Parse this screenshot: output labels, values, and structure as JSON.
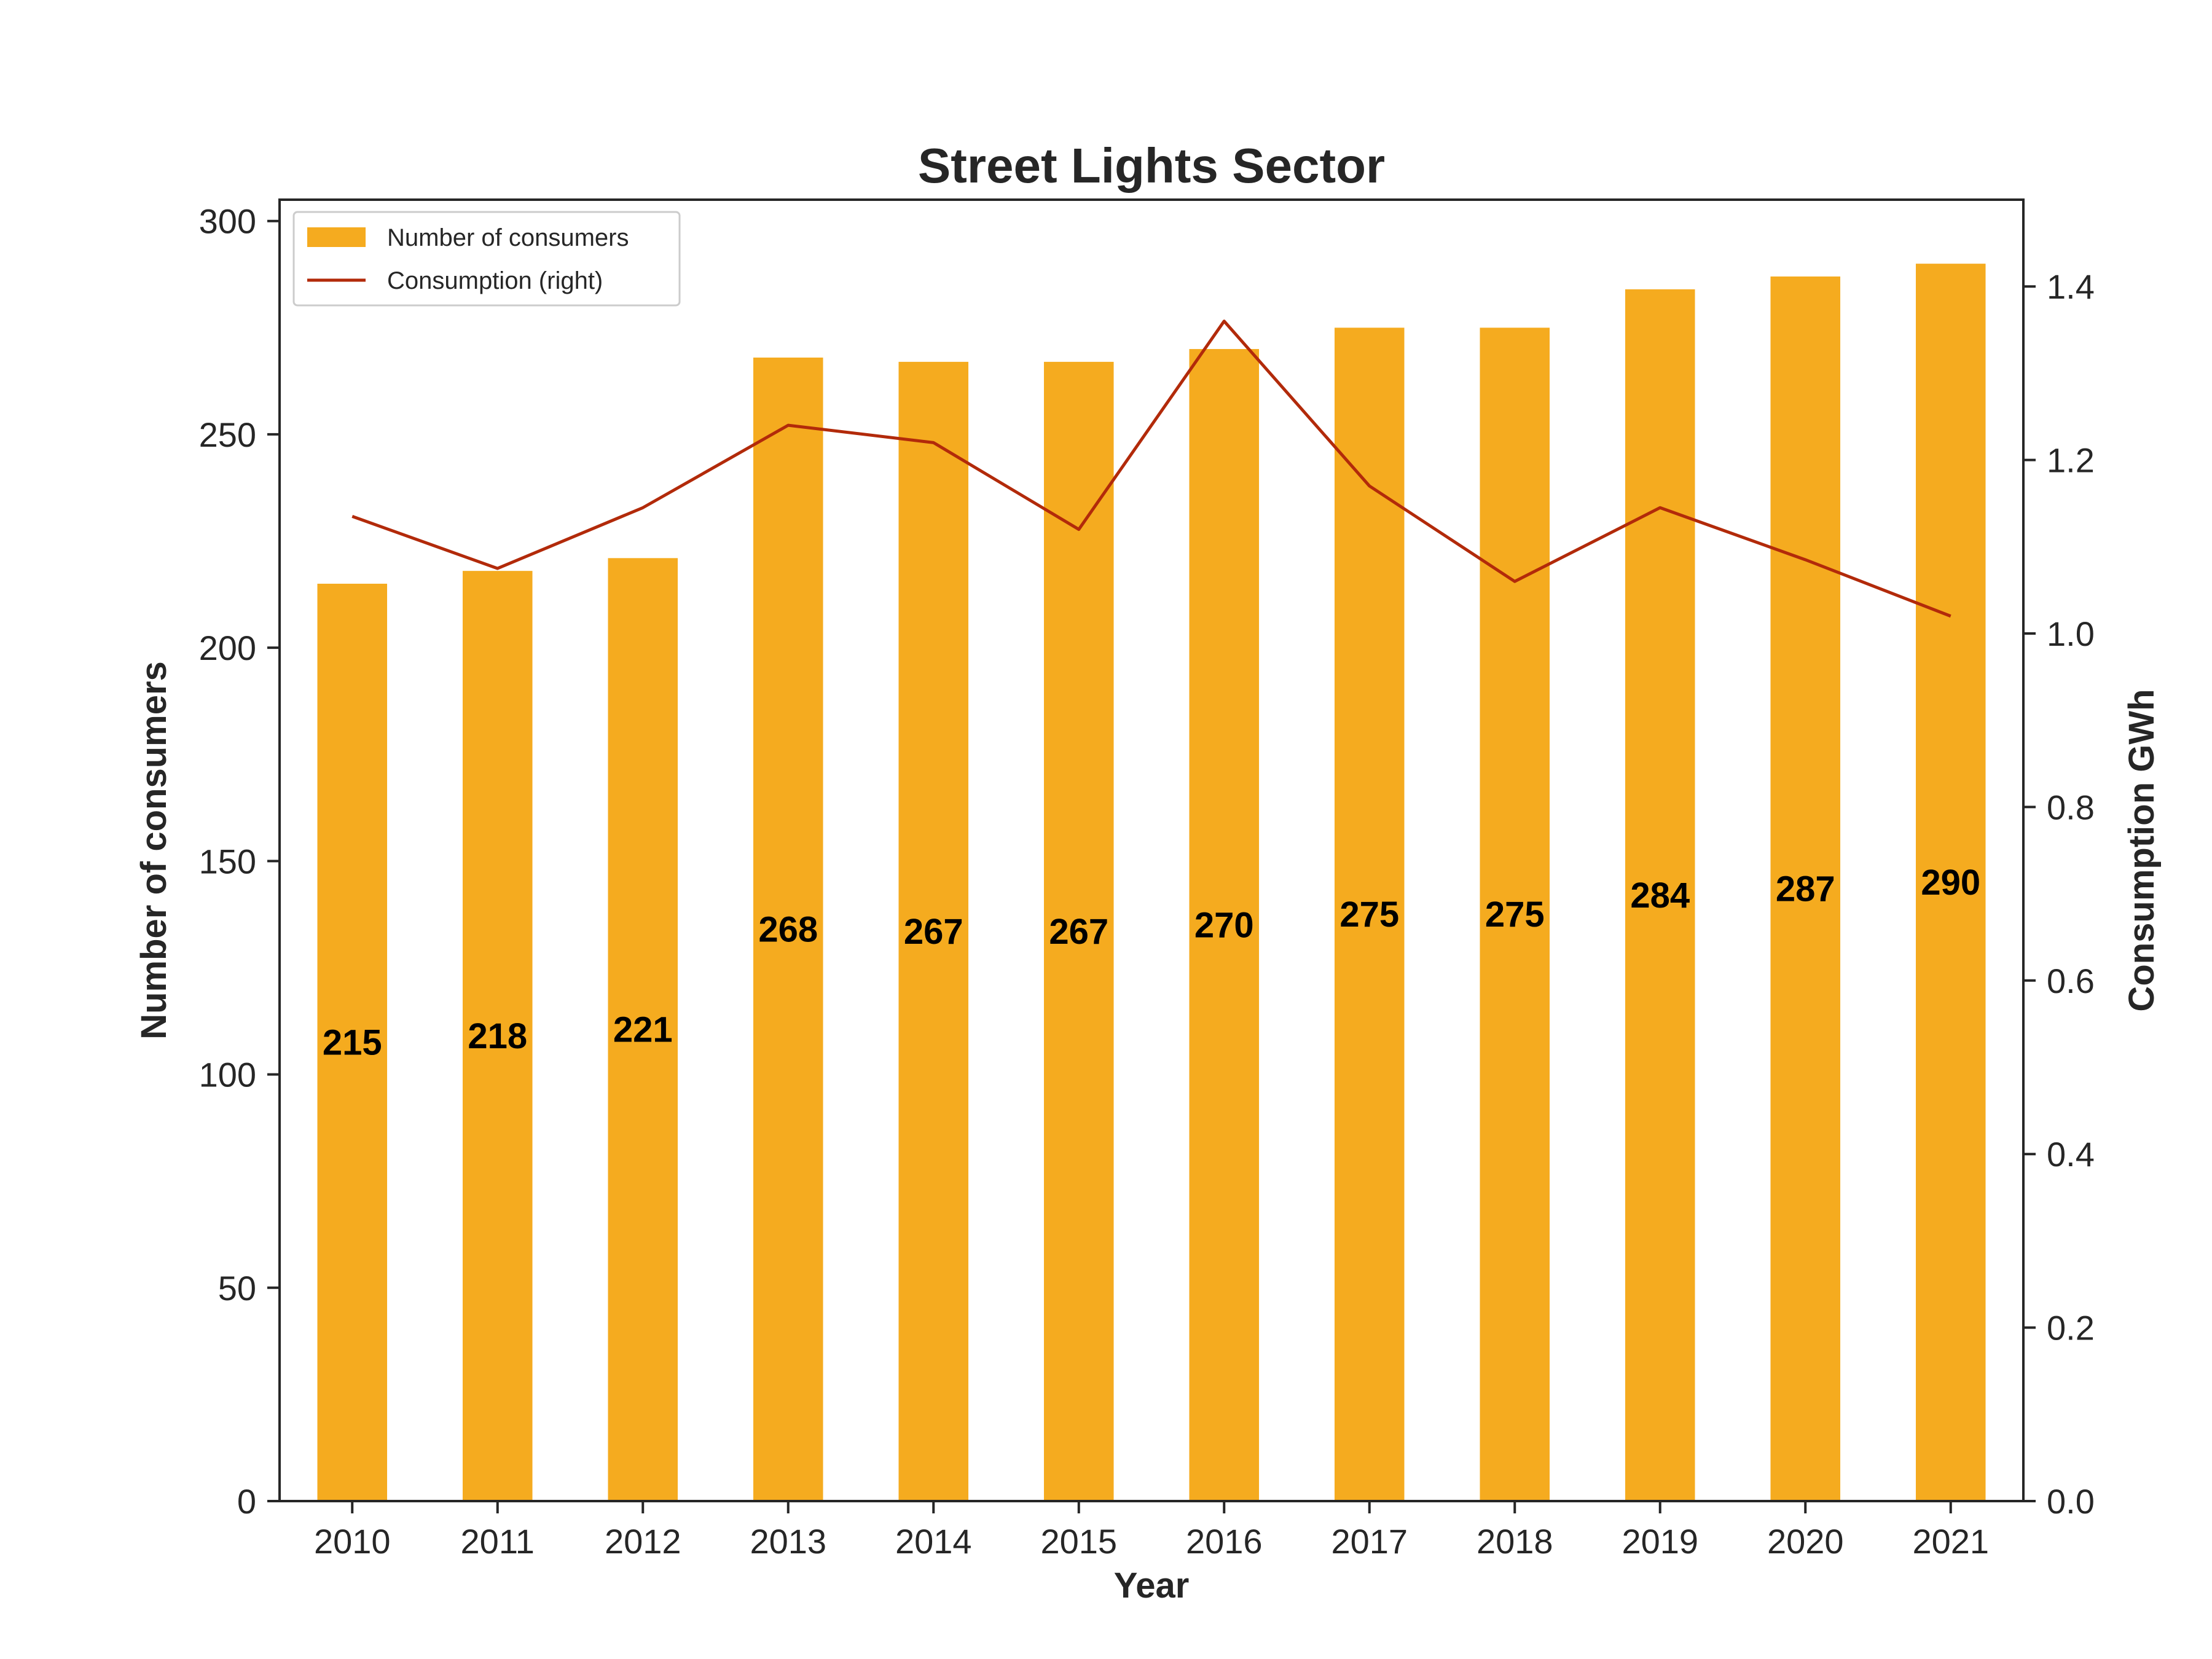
{
  "chart_data": {
    "type": "bar",
    "title": "Street Lights Sector",
    "xlabel": "Year",
    "ylabel": "Number of consumers",
    "ylabel_right": "Consumption GWh",
    "categories": [
      "2010",
      "2011",
      "2012",
      "2013",
      "2014",
      "2015",
      "2016",
      "2017",
      "2018",
      "2019",
      "2020",
      "2021"
    ],
    "series": [
      {
        "name": "Number of consumers",
        "type": "bar",
        "axis": "left",
        "color": "#f5ab1f",
        "values": [
          215,
          218,
          221,
          268,
          267,
          267,
          270,
          275,
          275,
          284,
          287,
          290
        ],
        "data_labels": [
          "215",
          "218",
          "221",
          "268",
          "267",
          "267",
          "270",
          "275",
          "275",
          "284",
          "287",
          "290"
        ]
      },
      {
        "name": "Consumption (right)",
        "type": "line",
        "axis": "right",
        "color": "#b22a0a",
        "values": [
          1.135,
          1.075,
          1.145,
          1.24,
          1.22,
          1.12,
          1.36,
          1.17,
          1.06,
          1.145,
          1.085,
          1.02
        ]
      }
    ],
    "ylim": [
      0,
      305
    ],
    "ylim_right": [
      0,
      1.5
    ],
    "yticks": [
      0,
      50,
      100,
      150,
      200,
      250,
      300
    ],
    "yticks_right": [
      "0.0",
      "0.2",
      "0.4",
      "0.6",
      "0.8",
      "1.0",
      "1.2",
      "1.4"
    ],
    "grid": false,
    "legend_position": "top-left"
  }
}
